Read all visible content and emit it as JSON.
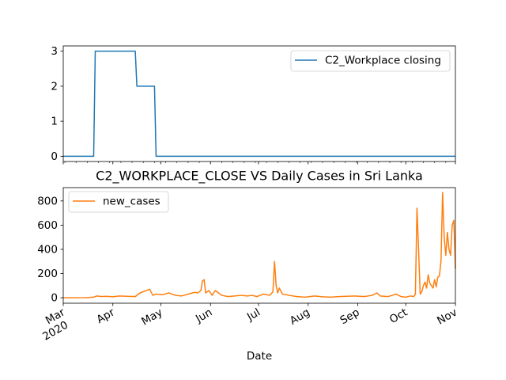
{
  "chart_data": [
    {
      "type": "line",
      "title": "",
      "xlabel": "",
      "ylabel": "",
      "ylim": [
        -0.15,
        3.15
      ],
      "yticks": [
        0,
        1,
        2,
        3
      ],
      "xlim": [
        "2020-03-01",
        "2020-11-01"
      ],
      "grid": false,
      "legend_position": "top-right",
      "series": [
        {
          "name": "C2_Workplace closing",
          "color": "#1f77b4",
          "x": [
            "2020-03-01",
            "2020-03-20",
            "2020-03-21",
            "2020-04-15",
            "2020-04-16",
            "2020-04-27",
            "2020-04-28",
            "2020-11-01"
          ],
          "values": [
            0,
            0,
            3,
            3,
            2,
            2,
            0,
            0
          ]
        }
      ]
    },
    {
      "type": "line",
      "title": "C2_WORKPLACE_CLOSE VS Daily Cases in Sri Lanka",
      "xlabel": "Date",
      "ylabel": "",
      "ylim": [
        -45,
        910
      ],
      "yticks": [
        0,
        200,
        400,
        600,
        800
      ],
      "xlim": [
        "2020-03-01",
        "2020-11-01"
      ],
      "grid": false,
      "legend_position": "top-left",
      "xtick_labels": [
        {
          "date": "2020-03-01",
          "label": "Mar",
          "sublabel": "2020"
        },
        {
          "date": "2020-04-01",
          "label": "Apr",
          "sublabel": ""
        },
        {
          "date": "2020-05-01",
          "label": "May",
          "sublabel": ""
        },
        {
          "date": "2020-06-01",
          "label": "Jun",
          "sublabel": ""
        },
        {
          "date": "2020-07-01",
          "label": "Jul",
          "sublabel": ""
        },
        {
          "date": "2020-08-01",
          "label": "Aug",
          "sublabel": ""
        },
        {
          "date": "2020-09-01",
          "label": "Sep",
          "sublabel": ""
        },
        {
          "date": "2020-10-01",
          "label": "Oct",
          "sublabel": ""
        },
        {
          "date": "2020-11-01",
          "label": "Nov",
          "sublabel": ""
        }
      ],
      "series": [
        {
          "name": "new_cases",
          "color": "#ff7f0e",
          "x": [
            "2020-03-01",
            "2020-03-15",
            "2020-03-20",
            "2020-03-22",
            "2020-03-25",
            "2020-03-28",
            "2020-04-01",
            "2020-04-05",
            "2020-04-10",
            "2020-04-15",
            "2020-04-18",
            "2020-04-22",
            "2020-04-24",
            "2020-04-26",
            "2020-04-28",
            "2020-05-02",
            "2020-05-06",
            "2020-05-10",
            "2020-05-14",
            "2020-05-18",
            "2020-05-22",
            "2020-05-24",
            "2020-05-26",
            "2020-05-27",
            "2020-05-28",
            "2020-05-29",
            "2020-05-31",
            "2020-06-02",
            "2020-06-04",
            "2020-06-06",
            "2020-06-08",
            "2020-06-12",
            "2020-06-16",
            "2020-06-20",
            "2020-06-24",
            "2020-06-27",
            "2020-06-30",
            "2020-07-04",
            "2020-07-08",
            "2020-07-10",
            "2020-07-11",
            "2020-07-12",
            "2020-07-13",
            "2020-07-14",
            "2020-07-16",
            "2020-07-20",
            "2020-07-25",
            "2020-07-30",
            "2020-08-05",
            "2020-08-10",
            "2020-08-15",
            "2020-08-20",
            "2020-08-25",
            "2020-08-30",
            "2020-09-05",
            "2020-09-10",
            "2020-09-13",
            "2020-09-15",
            "2020-09-20",
            "2020-09-25",
            "2020-09-28",
            "2020-10-01",
            "2020-10-04",
            "2020-10-06",
            "2020-10-07",
            "2020-10-08",
            "2020-10-09",
            "2020-10-10",
            "2020-10-11",
            "2020-10-12",
            "2020-10-13",
            "2020-10-14",
            "2020-10-15",
            "2020-10-16",
            "2020-10-17",
            "2020-10-18",
            "2020-10-19",
            "2020-10-20",
            "2020-10-21",
            "2020-10-22",
            "2020-10-23",
            "2020-10-24",
            "2020-10-25",
            "2020-10-26",
            "2020-10-27",
            "2020-10-28",
            "2020-10-29",
            "2020-10-30",
            "2020-10-31",
            "2020-11-01"
          ],
          "values": [
            0,
            1,
            5,
            15,
            10,
            12,
            8,
            15,
            12,
            10,
            40,
            60,
            70,
            20,
            30,
            25,
            40,
            20,
            15,
            30,
            45,
            40,
            60,
            140,
            150,
            40,
            60,
            20,
            60,
            40,
            20,
            10,
            15,
            20,
            15,
            20,
            10,
            30,
            20,
            50,
            300,
            100,
            40,
            80,
            30,
            20,
            10,
            5,
            15,
            8,
            5,
            10,
            12,
            15,
            10,
            20,
            40,
            15,
            10,
            30,
            10,
            5,
            15,
            10,
            30,
            740,
            400,
            30,
            50,
            100,
            130,
            80,
            190,
            120,
            100,
            80,
            150,
            90,
            170,
            180,
            300,
            870,
            500,
            350,
            540,
            400,
            350,
            600,
            640,
            240
          ]
        }
      ]
    }
  ]
}
